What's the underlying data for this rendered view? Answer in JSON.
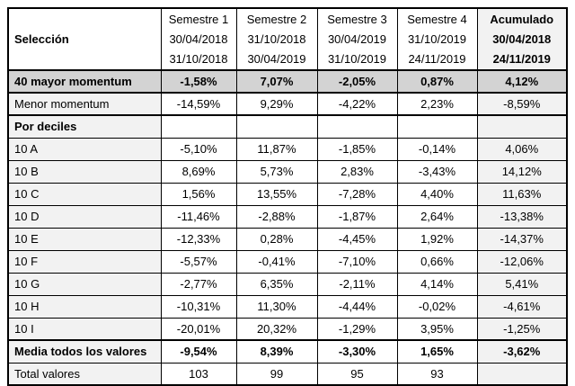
{
  "table": {
    "corner_header": "Selección",
    "columns": [
      {
        "label": "Semestre 1",
        "period_start": "30/04/2018",
        "period_end": "31/10/2018"
      },
      {
        "label": "Semestre 2",
        "period_start": "31/10/2018",
        "period_end": "30/04/2019"
      },
      {
        "label": "Semestre 3",
        "period_start": "30/04/2019",
        "period_end": "31/10/2019"
      },
      {
        "label": "Semestre 4",
        "period_start": "31/10/2019",
        "period_end": "24/11/2019"
      },
      {
        "label": "Acumulado",
        "period_start": "30/04/2018",
        "period_end": "24/11/2019"
      }
    ],
    "rows": [
      {
        "label": "40 mayor momentum",
        "style": "highlight",
        "values": [
          "-1,58%",
          "7,07%",
          "-2,05%",
          "0,87%",
          "4,12%"
        ]
      },
      {
        "label": "Menor momentum",
        "style": "normal",
        "values": [
          "-14,59%",
          "9,29%",
          "-4,22%",
          "2,23%",
          "-8,59%"
        ]
      },
      {
        "label": "Por deciles",
        "style": "section",
        "values": [
          "",
          "",
          "",
          "",
          ""
        ]
      },
      {
        "label": "10 A",
        "style": "normal",
        "values": [
          "-5,10%",
          "11,87%",
          "-1,85%",
          "-0,14%",
          "4,06%"
        ]
      },
      {
        "label": "10 B",
        "style": "normal",
        "values": [
          "8,69%",
          "5,73%",
          "2,83%",
          "-3,43%",
          "14,12%"
        ]
      },
      {
        "label": "10 C",
        "style": "normal",
        "values": [
          "1,56%",
          "13,55%",
          "-7,28%",
          "4,40%",
          "11,63%"
        ]
      },
      {
        "label": "10 D",
        "style": "normal",
        "values": [
          "-11,46%",
          "-2,88%",
          "-1,87%",
          "2,64%",
          "-13,38%"
        ]
      },
      {
        "label": "10 E",
        "style": "normal",
        "values": [
          "-12,33%",
          "0,28%",
          "-4,45%",
          "1,92%",
          "-14,37%"
        ]
      },
      {
        "label": "10 F",
        "style": "normal",
        "values": [
          "-5,57%",
          "-0,41%",
          "-7,10%",
          "0,66%",
          "-12,06%"
        ]
      },
      {
        "label": "10 G",
        "style": "normal",
        "values": [
          "-2,77%",
          "6,35%",
          "-2,11%",
          "4,14%",
          "5,41%"
        ]
      },
      {
        "label": "10 H",
        "style": "normal",
        "values": [
          "-10,31%",
          "11,30%",
          "-4,44%",
          "-0,02%",
          "-4,61%"
        ]
      },
      {
        "label": "10 I",
        "style": "normal",
        "values": [
          "-20,01%",
          "20,32%",
          "-1,29%",
          "3,95%",
          "-1,25%"
        ]
      },
      {
        "label": "Media todos los valores",
        "style": "bold",
        "values": [
          "-9,54%",
          "8,39%",
          "-3,30%",
          "1,65%",
          "-3,62%"
        ]
      },
      {
        "label": "Total valores",
        "style": "normal",
        "values": [
          "103",
          "99",
          "95",
          "93",
          ""
        ]
      }
    ]
  },
  "colors": {
    "highlight_row_bg": "#d3d3d3",
    "shaded_cell_bg": "#f2f2f2",
    "border": "#000000",
    "text": "#000000",
    "background": "#ffffff"
  }
}
